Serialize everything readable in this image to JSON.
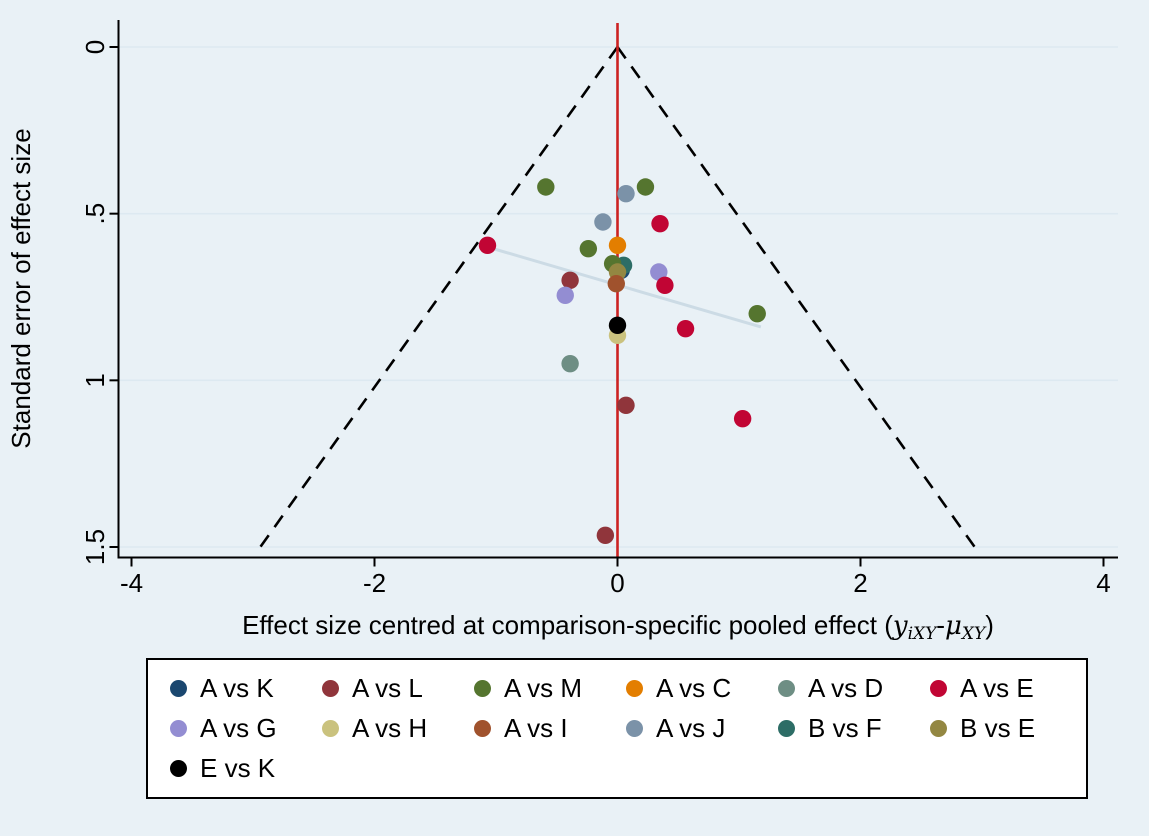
{
  "figure": {
    "background": "#e9f1f6",
    "ylabel": "Standard error of effect size",
    "xlabel_prefix": "Effect size centred at comparison-specific pooled effect (",
    "xlabel_y": "y",
    "xlabel_ysub": "iXY",
    "xlabel_minus": "-",
    "xlabel_mu": "μ",
    "xlabel_musub": "XY",
    "xlabel_suffix": ")"
  },
  "chart_data": {
    "type": "scatter",
    "title": "",
    "xlabel": "Effect size centred at comparison-specific pooled effect (yiXY-μXY)",
    "ylabel": "Standard error of effect size",
    "xlim": [
      -4.11,
      4.12
    ],
    "ylim": [
      0,
      1.52
    ],
    "y_axis_inverted": true,
    "grid": "horizontal",
    "gridline_color": "#dde9f1",
    "axis_color": "#000000",
    "xticks": [
      -4,
      -2,
      0,
      2,
      4
    ],
    "xtick_labels": [
      "-4",
      "-2",
      "0",
      "2",
      "4"
    ],
    "yticks": [
      0,
      0.5,
      1,
      1.5
    ],
    "ytick_labels": [
      "0",
      ".5",
      "1",
      "1.5"
    ],
    "funnel": {
      "style": "dashed",
      "color": "#000000",
      "apex": [
        0,
        0
      ],
      "left_end": [
        -2.94,
        1.5
      ],
      "right_end": [
        2.94,
        1.5
      ]
    },
    "center_line": {
      "x": 0,
      "color": "#cc2222"
    },
    "regression_line": {
      "from": [
        -1.07,
        0.6
      ],
      "to": [
        1.18,
        0.84
      ],
      "color": "#ccdbe5"
    },
    "series": [
      {
        "label": "A vs K",
        "color": "#1a476f"
      },
      {
        "label": "A vs L",
        "color": "#90353b"
      },
      {
        "label": "A vs M",
        "color": "#55752f"
      },
      {
        "label": "A vs C",
        "color": "#e37e00"
      },
      {
        "label": "A vs D",
        "color": "#6e8e84"
      },
      {
        "label": "A vs E",
        "color": "#c10534"
      },
      {
        "label": "A vs G",
        "color": "#938dd2"
      },
      {
        "label": "A vs H",
        "color": "#cac27e"
      },
      {
        "label": "A vs I",
        "color": "#a0522d"
      },
      {
        "label": "A vs J",
        "color": "#7b92a8"
      },
      {
        "label": "B vs F",
        "color": "#2d6d66"
      },
      {
        "label": "B vs E",
        "color": "#938742"
      },
      {
        "label": "E vs K",
        "color": "#000000"
      }
    ],
    "points": [
      {
        "x": 0.03,
        "y": 0.67,
        "series": "A vs K"
      },
      {
        "x": 0.05,
        "y": 0.655,
        "series": "B vs F"
      },
      {
        "x": -0.59,
        "y": 0.42,
        "series": "A vs M"
      },
      {
        "x": 0.23,
        "y": 0.42,
        "series": "A vs M"
      },
      {
        "x": 0.07,
        "y": 0.44,
        "series": "A vs J"
      },
      {
        "x": -0.12,
        "y": 0.525,
        "series": "A vs J"
      },
      {
        "x": 0.35,
        "y": 0.53,
        "series": "A vs E"
      },
      {
        "x": -1.07,
        "y": 0.595,
        "series": "A vs E"
      },
      {
        "x": -0.24,
        "y": 0.605,
        "series": "A vs M"
      },
      {
        "x": 0.0,
        "y": 0.595,
        "series": "A vs C"
      },
      {
        "x": -0.04,
        "y": 0.65,
        "series": "A vs M"
      },
      {
        "x": 0.0,
        "y": 0.675,
        "series": "B vs E"
      },
      {
        "x": -0.01,
        "y": 0.71,
        "series": "A vs I"
      },
      {
        "x": 0.34,
        "y": 0.675,
        "series": "A vs G"
      },
      {
        "x": -0.39,
        "y": 0.7,
        "series": "A vs L"
      },
      {
        "x": 0.39,
        "y": 0.715,
        "series": "A vs E"
      },
      {
        "x": -0.43,
        "y": 0.745,
        "series": "A vs G"
      },
      {
        "x": 1.15,
        "y": 0.8,
        "series": "A vs M"
      },
      {
        "x": 0.56,
        "y": 0.845,
        "series": "A vs E"
      },
      {
        "x": 0.0,
        "y": 0.865,
        "series": "A vs H"
      },
      {
        "x": 0.0,
        "y": 0.835,
        "series": "E vs K"
      },
      {
        "x": -0.39,
        "y": 0.95,
        "series": "A vs D"
      },
      {
        "x": 0.07,
        "y": 1.075,
        "series": "A vs L"
      },
      {
        "x": 1.03,
        "y": 1.115,
        "series": "A vs E"
      },
      {
        "x": -0.1,
        "y": 1.465,
        "series": "A vs L"
      }
    ],
    "legend": {
      "position": "bottom",
      "columns": 6
    }
  }
}
